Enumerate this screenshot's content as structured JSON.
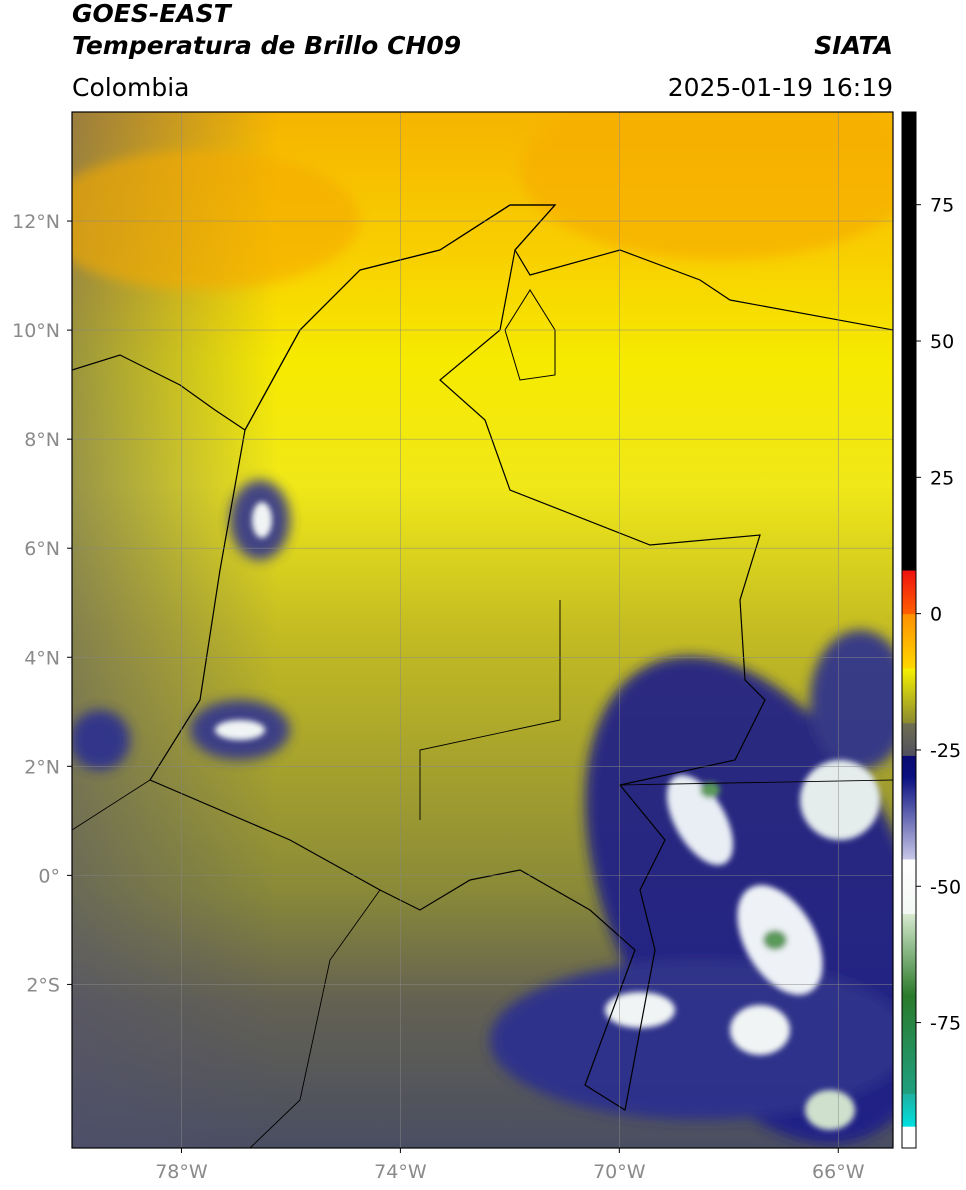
{
  "header": {
    "satellite": "GOES-EAST",
    "product": "Temperatura de Brillo CH09",
    "agency": "SIATA",
    "region": "Colombia",
    "timestamp": "2025-01-19 16:19"
  },
  "map": {
    "xlim": [
      -80,
      -65
    ],
    "ylim": [
      -5,
      14
    ],
    "xticks": [
      {
        "value": -78,
        "label": "78°W"
      },
      {
        "value": -74,
        "label": "74°W"
      },
      {
        "value": -70,
        "label": "70°W"
      },
      {
        "value": -66,
        "label": "66°W"
      }
    ],
    "yticks": [
      {
        "value": 12,
        "label": "12°N"
      },
      {
        "value": 10,
        "label": "10°N"
      },
      {
        "value": 8,
        "label": "8°N"
      },
      {
        "value": 6,
        "label": "6°N"
      },
      {
        "value": 4,
        "label": "4°N"
      },
      {
        "value": 2,
        "label": "2°N"
      },
      {
        "value": 0,
        "label": "0°"
      },
      {
        "value": -2,
        "label": "2°S"
      }
    ],
    "grid": true
  },
  "colorbar": {
    "lim": [
      -98,
      92
    ],
    "ticks": [
      75,
      50,
      25,
      0,
      -25,
      -50,
      -75
    ],
    "segments": [
      {
        "from": -98,
        "to": -94,
        "color_from": "#ffffff",
        "color_to": "#ffffff"
      },
      {
        "from": -94,
        "to": -88,
        "color_from": "#00e0e0",
        "color_to": "#20b0a0"
      },
      {
        "from": -88,
        "to": -70,
        "color_from": "#20a080",
        "color_to": "#2a7a2a"
      },
      {
        "from": -70,
        "to": -55,
        "color_from": "#2a7a2a",
        "color_to": "#d8ead0"
      },
      {
        "from": -55,
        "to": -45,
        "color_from": "#f4f8f4",
        "color_to": "#ffffff"
      },
      {
        "from": -45,
        "to": -30,
        "color_from": "#c8c8e8",
        "color_to": "#0a1080"
      },
      {
        "from": -30,
        "to": -26,
        "color_from": "#0a1080",
        "color_to": "#0a0a70"
      },
      {
        "from": -26,
        "to": -20,
        "color_from": "#505060",
        "color_to": "#707050"
      },
      {
        "from": -20,
        "to": -10,
        "color_from": "#8a8a30",
        "color_to": "#f6f200"
      },
      {
        "from": -10,
        "to": 0,
        "color_from": "#ffd800",
        "color_to": "#ff9000"
      },
      {
        "from": 0,
        "to": 8,
        "color_from": "#ff6000",
        "color_to": "#ee1010"
      },
      {
        "from": 8,
        "to": 92,
        "color_from": "#000000",
        "color_to": "#000000"
      }
    ]
  }
}
